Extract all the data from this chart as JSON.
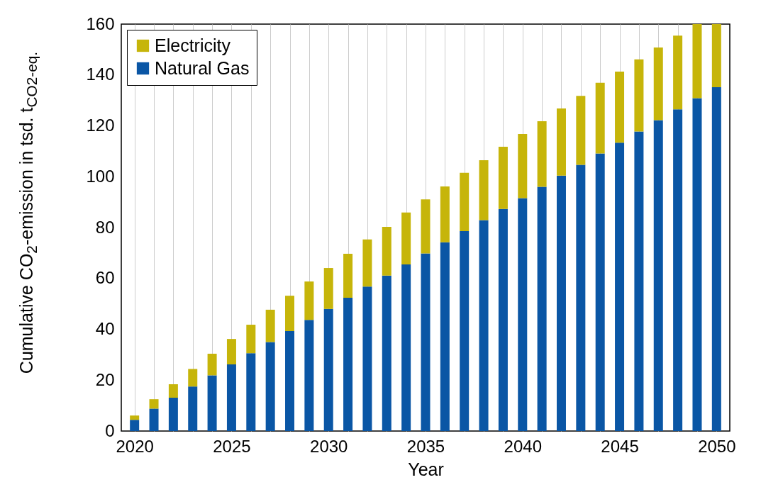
{
  "chart_data": {
    "type": "bar",
    "stacked": true,
    "xlabel": "Year",
    "ylabel": "Cumulative CO$_{2}$-emission in tsd. t$_{CO2-eq.}$",
    "x": [
      2020,
      2021,
      2022,
      2023,
      2024,
      2025,
      2026,
      2027,
      2028,
      2029,
      2030,
      2031,
      2032,
      2033,
      2034,
      2035,
      2036,
      2037,
      2038,
      2039,
      2040,
      2041,
      2042,
      2043,
      2044,
      2045,
      2046,
      2047,
      2048,
      2049,
      2050
    ],
    "series": [
      {
        "name": "Natural Gas",
        "color": "#0a56a5",
        "values": [
          4.4,
          8.8,
          13.1,
          17.5,
          21.9,
          26.2,
          30.6,
          35,
          39.3,
          43.7,
          48,
          52.4,
          56.8,
          61.1,
          65.5,
          69.8,
          74.2,
          78.6,
          82.9,
          87.3,
          91.6,
          96,
          100.4,
          104.7,
          109.1,
          113.4,
          117.8,
          122.2,
          126.5,
          130.9,
          135.2
        ]
      },
      {
        "name": "Electricity",
        "color": "#c6b50a",
        "values": [
          1.7,
          3.7,
          5.3,
          6.9,
          8.5,
          10,
          11.2,
          12.7,
          13.9,
          15.1,
          16.1,
          17.3,
          18.5,
          19.2,
          20.4,
          21.3,
          22,
          22.9,
          23.6,
          24.5,
          25.2,
          25.8,
          26.4,
          27.1,
          27.8,
          27.9,
          28.3,
          28.6,
          29,
          29.1,
          24.8
        ]
      }
    ],
    "xlim": [
      2019.5,
      2050.5
    ],
    "xticks": [
      2020,
      {
        "value": 2021,
        "label": null
      },
      {
        "value": 2022,
        "label": null
      },
      {
        "value": 2023,
        "label": null
      },
      {
        "value": 2024,
        "label": null
      },
      2025,
      {
        "value": 2026,
        "label": null
      },
      {
        "value": 2027,
        "label": null
      },
      {
        "value": 2028,
        "label": null
      },
      {
        "value": 2029,
        "label": null
      },
      2030,
      {
        "value": 2031,
        "label": null
      },
      {
        "value": 2032,
        "label": null
      },
      {
        "value": 2033,
        "label": null
      },
      {
        "value": 2034,
        "label": null
      },
      2035,
      {
        "value": 2036,
        "label": null
      },
      {
        "value": 2037,
        "label": null
      },
      {
        "value": 2038,
        "label": null
      },
      {
        "value": 2039,
        "label": null
      },
      2040,
      {
        "value": 2041,
        "label": null
      },
      {
        "value": 2042,
        "label": null
      },
      {
        "value": 2043,
        "label": null
      },
      {
        "value": 2044,
        "label": null
      },
      2045,
      {
        "value": 2046,
        "label": null
      },
      {
        "value": 2047,
        "label": null
      },
      {
        "value": 2048,
        "label": null
      },
      {
        "value": 2049,
        "label": null
      },
      2050
    ],
    "ylim": [
      0,
      160
    ],
    "yticks": [
      0,
      20,
      40,
      60,
      80,
      100,
      120,
      140,
      160
    ],
    "grid": "x",
    "legend": "top left"
  }
}
